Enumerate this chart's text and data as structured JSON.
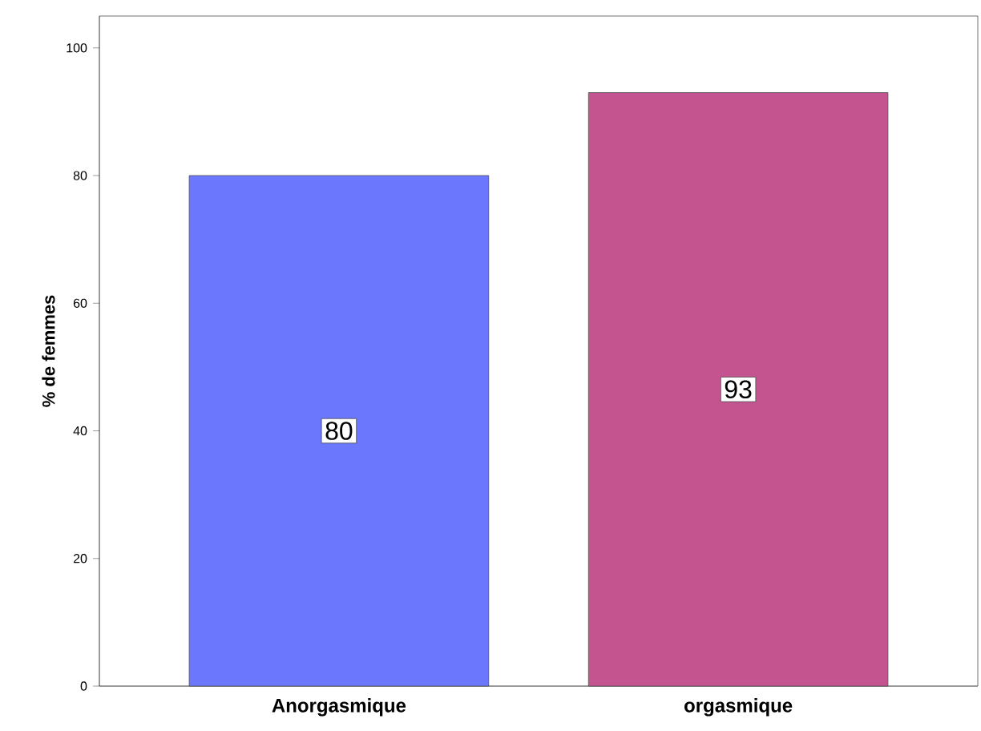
{
  "chart_data": {
    "type": "bar",
    "ylabel": "% de femmes",
    "categories": [
      "Anorgasmique",
      "orgasmique"
    ],
    "values": [
      80,
      93
    ],
    "value_labels": [
      "80",
      "93"
    ],
    "colors": [
      "#6b78fe",
      "#c4548f"
    ],
    "ylim": [
      0,
      105
    ],
    "yticks": [
      0,
      20,
      40,
      60,
      80,
      100
    ],
    "grid": false
  }
}
